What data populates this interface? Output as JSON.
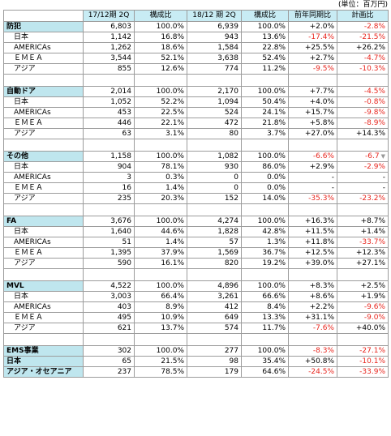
{
  "unit_note": "(単位：百万円)",
  "headers": [
    "17/12期 2Q",
    "構成比",
    "18/12 期 2Q",
    "構成比",
    "前年同期比",
    "計画比"
  ],
  "dropdown_icon": "chevron-down-icon",
  "colors": {
    "header_bg": "#c8ecf4",
    "segment_bg": "#bfe6ee",
    "negative": "#e8261e"
  },
  "segments": [
    {
      "name": "防犯",
      "total": [
        "6,803",
        "100.0%",
        "6,939",
        "100.0%",
        "+2.0%",
        "-2.8%"
      ],
      "rows": [
        {
          "label": "日本",
          "cells": [
            "1,142",
            "16.8%",
            "943",
            "13.6%",
            "-17.4%",
            "-21.5%"
          ]
        },
        {
          "label": "AMERICAs",
          "cells": [
            "1,262",
            "18.6%",
            "1,584",
            "22.8%",
            "+25.5%",
            "+26.2%"
          ]
        },
        {
          "label": "ＥＭＥＡ",
          "cells": [
            "3,544",
            "52.1%",
            "3,638",
            "52.4%",
            "+2.7%",
            "-4.7%"
          ]
        },
        {
          "label": "アジア",
          "cells": [
            "855",
            "12.6%",
            "774",
            "11.2%",
            "-9.5%",
            "-10.3%"
          ]
        }
      ]
    },
    {
      "name": "自動ドア",
      "total": [
        "2,014",
        "100.0%",
        "2,170",
        "100.0%",
        "+7.7%",
        "-4.5%"
      ],
      "rows": [
        {
          "label": "日本",
          "cells": [
            "1,052",
            "52.2%",
            "1,094",
            "50.4%",
            "+4.0%",
            "-0.8%"
          ]
        },
        {
          "label": "AMERICAs",
          "cells": [
            "453",
            "22.5%",
            "524",
            "24.1%",
            "+15.7%",
            "-9.8%"
          ]
        },
        {
          "label": "ＥＭＥＡ",
          "cells": [
            "446",
            "22.1%",
            "472",
            "21.8%",
            "+5.8%",
            "-8.9%"
          ]
        },
        {
          "label": "アジア",
          "cells": [
            "63",
            "3.1%",
            "80",
            "3.7%",
            "+27.0%",
            "+14.3%"
          ]
        }
      ]
    },
    {
      "name": "その他",
      "total": [
        "1,158",
        "100.0%",
        "1,082",
        "100.0%",
        "-6.6%",
        "-6.7"
      ],
      "rows": [
        {
          "label": "日本",
          "cells": [
            "904",
            "78.1%",
            "930",
            "86.0%",
            "+2.9%",
            "-2.9%"
          ]
        },
        {
          "label": "AMERICAs",
          "cells": [
            "3",
            "0.3%",
            "0",
            "0.0%",
            "-",
            "-"
          ]
        },
        {
          "label": "ＥＭＥＡ",
          "cells": [
            "16",
            "1.4%",
            "0",
            "0.0%",
            "-",
            "-"
          ]
        },
        {
          "label": "アジア",
          "cells": [
            "235",
            "20.3%",
            "152",
            "14.0%",
            "-35.3%",
            "-23.2%"
          ]
        }
      ]
    },
    {
      "name": "FA",
      "total": [
        "3,676",
        "100.0%",
        "4,274",
        "100.0%",
        "+16.3%",
        "+8.7%"
      ],
      "rows": [
        {
          "label": "日本",
          "cells": [
            "1,640",
            "44.6%",
            "1,828",
            "42.8%",
            "+11.5%",
            "+1.4%"
          ]
        },
        {
          "label": "AMERICAs",
          "cells": [
            "51",
            "1.4%",
            "57",
            "1.3%",
            "+11.8%",
            "-33.7%"
          ]
        },
        {
          "label": "ＥＭＥＡ",
          "cells": [
            "1,395",
            "37.9%",
            "1,569",
            "36.7%",
            "+12.5%",
            "+12.3%"
          ]
        },
        {
          "label": "アジア",
          "cells": [
            "590",
            "16.1%",
            "820",
            "19.2%",
            "+39.0%",
            "+27.1%"
          ]
        }
      ]
    },
    {
      "name": "MVL",
      "total": [
        "4,522",
        "100.0%",
        "4,896",
        "100.0%",
        "+8.3%",
        "+2.5%"
      ],
      "rows": [
        {
          "label": "日本",
          "cells": [
            "3,003",
            "66.4%",
            "3,261",
            "66.6%",
            "+8.6%",
            "+1.9%"
          ]
        },
        {
          "label": "AMERICAs",
          "cells": [
            "403",
            "8.9%",
            "412",
            "8.4%",
            "+2.2%",
            "-9.6%"
          ]
        },
        {
          "label": "ＥＭＥＡ",
          "cells": [
            "495",
            "10.9%",
            "649",
            "13.3%",
            "+31.1%",
            "-9.0%"
          ]
        },
        {
          "label": "アジア",
          "cells": [
            "621",
            "13.7%",
            "574",
            "11.7%",
            "-7.6%",
            "+40.0%"
          ]
        }
      ]
    },
    {
      "name": "EMS事業",
      "total": [
        "302",
        "100.0%",
        "277",
        "100.0%",
        "-8.3%",
        "-27.1%"
      ],
      "rows": [
        {
          "label": "日本",
          "cells": [
            "65",
            "21.5%",
            "98",
            "35.4%",
            "+50.8%",
            "-10.1%"
          ]
        },
        {
          "label": "アジア・オセアニア",
          "cells": [
            "237",
            "78.5%",
            "179",
            "64.6%",
            "-24.5%",
            "-33.9%"
          ]
        }
      ]
    }
  ]
}
